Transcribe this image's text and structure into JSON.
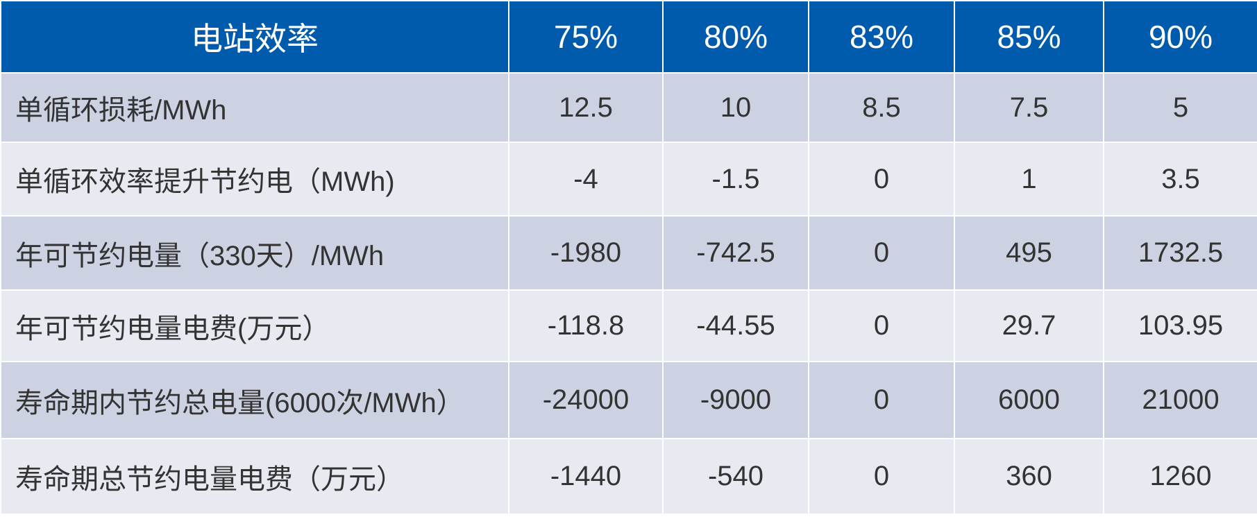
{
  "table": {
    "header": [
      "电站效率",
      "75%",
      "80%",
      "83%",
      "85%",
      "90%"
    ],
    "rows": [
      [
        "单循环损耗/MWh",
        "12.5",
        "10",
        "8.5",
        "7.5",
        "5"
      ],
      [
        "单循环效率提升节约电（MWh)",
        "-4",
        "-1.5",
        "0",
        "1",
        "3.5"
      ],
      [
        "年可节约电量（330天）/MWh",
        "-1980",
        "-742.5",
        "0",
        "495",
        "1732.5"
      ],
      [
        "年可节约电量电费(万元）",
        "-118.8",
        "-44.55",
        "0",
        "29.7",
        "103.95"
      ],
      [
        "寿命期内节约总电量(6000次/MWh）",
        "-24000",
        "-9000",
        "0",
        "6000",
        "21000"
      ],
      [
        "寿命期总节约电量电费（万元）",
        "-1440",
        "-540",
        "0",
        "360",
        "1260"
      ]
    ]
  }
}
